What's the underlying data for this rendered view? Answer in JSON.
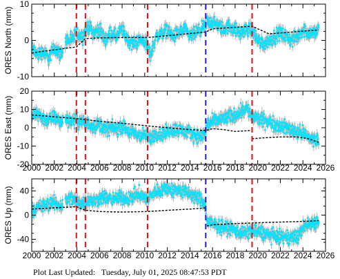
{
  "footer": {
    "label": "Plot Last Updated:",
    "timestamp": "Tuesday, July 01, 2025 08:47:53 PDT"
  },
  "colors": {
    "data": "#00e5ff",
    "error": "#a8a8a8",
    "model": "#000000",
    "event_red": "#dd1111",
    "event_blue": "#1f1fcc"
  },
  "chart_data": [
    {
      "type": "scatter",
      "ylabel": "ORES North (mm)",
      "xlim": [
        2000,
        2026
      ],
      "ylim": [
        -10,
        10
      ],
      "x_ticks": [
        "2000",
        "2002",
        "2004",
        "2006",
        "2008",
        "2010",
        "2012",
        "2014",
        "2016",
        "2018",
        "2020",
        "2022",
        "2024",
        "2026"
      ],
      "y_ticks": [
        "-10",
        "0",
        "10"
      ],
      "x_tick_labels_visible": false,
      "events": [
        {
          "x": 2003.95,
          "color": "red"
        },
        {
          "x": 2004.75,
          "color": "red"
        },
        {
          "x": 2010.25,
          "color": "red"
        },
        {
          "x": 2015.4,
          "color": "blue"
        },
        {
          "x": 2019.5,
          "color": "red"
        }
      ],
      "series": [
        {
          "kind": "observed",
          "x": [
            2000.0,
            2000.5,
            2001.0,
            2001.5,
            2002.0,
            2002.6,
            2003.0,
            2003.5,
            2004.0,
            2004.5,
            2005.0,
            2005.5,
            2006.0,
            2006.5,
            2007.0,
            2007.5,
            2008.0,
            2008.5,
            2009.0,
            2009.5,
            2010.0,
            2010.5,
            2011.0,
            2011.5,
            2012.0,
            2012.5,
            2013.0,
            2013.5,
            2014.0,
            2014.5,
            2015.0,
            2015.4,
            2015.5,
            2016.0,
            2016.5,
            2017.0,
            2017.5,
            2018.0,
            2018.5,
            2019.0,
            2019.5,
            2020.0,
            2020.5,
            2021.0,
            2021.5,
            2022.0,
            2022.5,
            2023.0,
            2023.5,
            2024.0,
            2024.5,
            2025.0,
            2025.4
          ],
          "y": [
            -2,
            -4,
            -3,
            -5,
            -2,
            -4,
            0,
            0,
            2,
            1,
            4,
            2,
            3,
            0,
            2,
            1,
            3,
            0,
            -1,
            0,
            0,
            -4,
            1,
            2,
            3,
            1,
            2,
            3,
            1,
            2,
            3,
            4,
            5,
            5,
            4,
            3,
            4,
            3,
            2,
            3,
            3,
            0,
            -1,
            0,
            1,
            2,
            1,
            0,
            1,
            3,
            2,
            2,
            3
          ]
        },
        {
          "kind": "model",
          "x": [
            2000.0,
            2001.0,
            2002.0,
            2003.0,
            2003.95,
            2004.75,
            2006.0,
            2008.0,
            2010.25,
            2012.0,
            2014.0,
            2015.4,
            2016.0,
            2018.0,
            2019.5,
            2021.0,
            2023.0,
            2025.4
          ],
          "y": [
            -3.5,
            -3.0,
            -2.6,
            -2.2,
            -1.8,
            0.5,
            0.7,
            0.8,
            0.8,
            1.3,
            1.9,
            2.3,
            3.2,
            3.6,
            3.9,
            1.8,
            2.3,
            2.9
          ]
        }
      ]
    },
    {
      "type": "scatter",
      "ylabel": "ORES East (mm)",
      "xlim": [
        2000,
        2026
      ],
      "ylim": [
        -20,
        20
      ],
      "x_ticks": [
        "2000",
        "2002",
        "2004",
        "2006",
        "2008",
        "2010",
        "2012",
        "2014",
        "2016",
        "2018",
        "2020",
        "2022",
        "2024",
        "2026"
      ],
      "y_ticks": [
        "-20",
        "-10",
        "0",
        "10",
        "20"
      ],
      "x_tick_labels_visible": true,
      "events": [
        {
          "x": 2003.95,
          "color": "red"
        },
        {
          "x": 2004.75,
          "color": "red"
        },
        {
          "x": 2010.25,
          "color": "red"
        },
        {
          "x": 2015.4,
          "color": "blue"
        },
        {
          "x": 2019.5,
          "color": "red"
        }
      ],
      "series": [
        {
          "kind": "observed",
          "x": [
            2000.0,
            2000.5,
            2001.0,
            2001.5,
            2002.0,
            2002.6,
            2003.0,
            2003.5,
            2004.0,
            2004.5,
            2005.0,
            2005.5,
            2006.0,
            2006.5,
            2007.0,
            2007.5,
            2008.0,
            2008.5,
            2009.0,
            2009.5,
            2010.0,
            2010.5,
            2011.0,
            2011.5,
            2012.0,
            2012.5,
            2013.0,
            2013.5,
            2014.0,
            2014.5,
            2015.0,
            2015.4,
            2015.5,
            2016.0,
            2016.5,
            2017.0,
            2017.5,
            2018.0,
            2018.5,
            2019.0,
            2019.5,
            2020.0,
            2020.5,
            2021.0,
            2021.5,
            2022.0,
            2022.5,
            2023.0,
            2023.5,
            2024.0,
            2024.5,
            2025.0,
            2025.4
          ],
          "y": [
            6,
            8,
            5,
            4,
            6,
            3,
            5,
            4,
            4,
            3,
            2,
            1,
            2,
            -1,
            0,
            -1,
            1,
            -2,
            -3,
            -4,
            -4,
            -6,
            -3,
            -4,
            -2,
            -1,
            -1,
            -2,
            -3,
            -4,
            -5,
            -2,
            2,
            3,
            4,
            5,
            6,
            7,
            9,
            11,
            6,
            5,
            4,
            3,
            2,
            1,
            0,
            -1,
            -2,
            -3,
            -5,
            -7,
            -6
          ]
        },
        {
          "kind": "model",
          "x": [
            2000.0,
            2002.0,
            2003.95,
            2004.75,
            2006.0,
            2008.0,
            2010.25,
            2012.0,
            2014.0,
            2015.4,
            2016.0,
            2017.0,
            2018.0,
            2019.4,
            2019.5,
            2020.5,
            2022.0,
            2023.5,
            2024.5,
            2025.4
          ],
          "y": [
            7,
            6,
            5,
            4.5,
            3.5,
            2.5,
            1,
            0,
            -1,
            -1.5,
            -0.5,
            -1,
            -2,
            -1.5,
            -6,
            -5.5,
            -5,
            -5,
            -6,
            -8
          ]
        }
      ]
    },
    {
      "type": "scatter",
      "ylabel": "ORES Up (mm)",
      "xlim": [
        2000,
        2026
      ],
      "ylim": [
        -60,
        60
      ],
      "x_ticks": [
        "2000",
        "2002",
        "2004",
        "2006",
        "2008",
        "2010",
        "2012",
        "2014",
        "2016",
        "2018",
        "2020",
        "2022",
        "2024",
        "2026"
      ],
      "y_ticks": [
        "-40",
        "0",
        "40"
      ],
      "x_tick_labels_visible": true,
      "events": [
        {
          "x": 2003.95,
          "color": "red"
        },
        {
          "x": 2004.75,
          "color": "red"
        },
        {
          "x": 2010.25,
          "color": "red"
        },
        {
          "x": 2015.4,
          "color": "blue"
        },
        {
          "x": 2019.5,
          "color": "red"
        }
      ],
      "series": [
        {
          "kind": "observed",
          "x": [
            2000.0,
            2000.5,
            2001.0,
            2001.5,
            2002.0,
            2002.6,
            2003.0,
            2003.5,
            2004.0,
            2004.5,
            2005.0,
            2005.5,
            2006.0,
            2006.5,
            2007.0,
            2007.5,
            2008.0,
            2008.5,
            2009.0,
            2009.5,
            2010.0,
            2010.5,
            2011.0,
            2011.5,
            2012.0,
            2012.5,
            2013.0,
            2013.5,
            2014.0,
            2014.5,
            2015.0,
            2015.4,
            2015.5,
            2016.0,
            2016.5,
            2017.0,
            2017.5,
            2018.0,
            2018.5,
            2019.0,
            2019.5,
            2020.0,
            2020.5,
            2021.0,
            2021.5,
            2022.0,
            2022.5,
            2023.0,
            2023.5,
            2024.0,
            2024.5,
            2025.0,
            2025.4
          ],
          "y": [
            10,
            12,
            15,
            18,
            20,
            15,
            25,
            28,
            22,
            20,
            25,
            22,
            28,
            30,
            25,
            28,
            30,
            26,
            32,
            35,
            28,
            30,
            40,
            42,
            45,
            40,
            42,
            38,
            35,
            30,
            25,
            15,
            -10,
            -15,
            -18,
            -20,
            -22,
            -25,
            -28,
            -30,
            -25,
            -28,
            -30,
            -32,
            -35,
            -36,
            -38,
            -35,
            -38,
            -20,
            -15,
            -12,
            -10
          ]
        },
        {
          "kind": "model",
          "x": [
            2000.0,
            2002.0,
            2003.95,
            2004.75,
            2006.0,
            2008.0,
            2010.25,
            2012.0,
            2014.0,
            2015.4,
            2015.5,
            2016.0,
            2018.0,
            2019.5,
            2021.0,
            2023.0,
            2024.5,
            2025.4
          ],
          "y": [
            10,
            12,
            14,
            8,
            6,
            5,
            6,
            8,
            10,
            12,
            -18,
            -16,
            -14,
            -13,
            -12,
            -11,
            -10,
            -9
          ]
        }
      ]
    }
  ]
}
